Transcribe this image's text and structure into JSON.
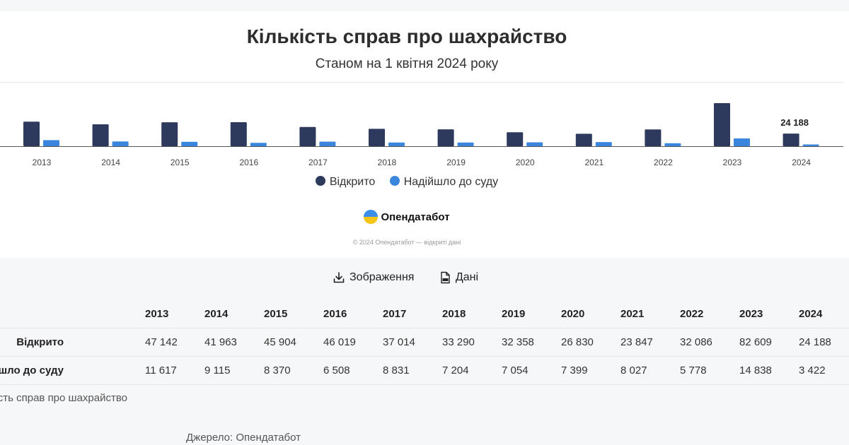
{
  "header": {
    "title": "Кількість справ про шахрайство",
    "subtitle": "Станом на 1 квітня 2024 року"
  },
  "legend": {
    "opened": "Відкрито",
    "to_court": "Надійшло до суду"
  },
  "logo": {
    "text": "Опендатабот"
  },
  "copyright": "© 2024 Опендатабот — відкриті дані",
  "actions": {
    "image": "Зображення",
    "data": "Дані"
  },
  "table": {
    "years": [
      "2013",
      "2014",
      "2015",
      "2016",
      "2017",
      "2018",
      "2019",
      "2020",
      "2021",
      "2022",
      "2023",
      "2024"
    ],
    "rows": [
      {
        "label": "Відкрито",
        "values": [
          "47 142",
          "41 963",
          "45 904",
          "46 019",
          "37 014",
          "33 290",
          "32 358",
          "26 830",
          "23 847",
          "32 086",
          "82 609",
          "24 188"
        ]
      },
      {
        "label": "Надійшло до суду",
        "values": [
          "11 617",
          "9 115",
          "8 370",
          "6 508",
          "8 831",
          "7 204",
          "7 054",
          "7 399",
          "8 027",
          "5 778",
          "14 838",
          "3 422"
        ]
      }
    ]
  },
  "caption": "Кількість справ про шахрайство",
  "source": "Джерело: Опендатабот",
  "colors": {
    "opened": "#2d3a5e",
    "to_court": "#3b86dd"
  },
  "chart_data": {
    "type": "bar",
    "title": "Кількість справ про шахрайство",
    "subtitle": "Станом на 1 квітня 2024 року",
    "categories": [
      "2013",
      "2014",
      "2015",
      "2016",
      "2017",
      "2018",
      "2019",
      "2020",
      "2021",
      "2022",
      "2023",
      "2024"
    ],
    "series": [
      {
        "name": "Відкрито",
        "values": [
          47142,
          41963,
          45904,
          46019,
          37014,
          33290,
          32358,
          26830,
          23847,
          32086,
          82609,
          24188
        ]
      },
      {
        "name": "Надійшло до суду",
        "values": [
          11617,
          9115,
          8370,
          6508,
          8831,
          7204,
          7054,
          7399,
          8027,
          5778,
          14838,
          3422
        ]
      }
    ],
    "data_labels": [
      {
        "category": "2024",
        "series": "Відкрито",
        "text": "24 188"
      }
    ],
    "legend": "bottom",
    "grid": false
  }
}
